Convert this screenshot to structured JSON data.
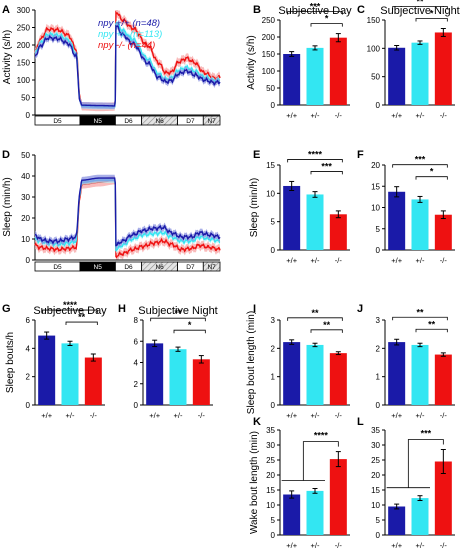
{
  "colors": {
    "wt": "#1a1aa8",
    "het": "#33e6f2",
    "hom": "#ee1111",
    "wt_band": "#8c94e0",
    "het_band": "#a8f2f8",
    "hom_band": "#f7a4a4"
  },
  "chart_data": [
    {
      "panel": "A",
      "type": "line",
      "ylabel": "Activity (s/h)",
      "ylim": [
        0,
        300
      ],
      "yticks": [
        "0",
        "50",
        "100",
        "150",
        "200",
        "250",
        "300"
      ],
      "legend": [
        {
          "name": "npy +/+ (n=48)",
          "color": "wt"
        },
        {
          "name": "npy +/- (n=113)",
          "color": "het"
        },
        {
          "name": "npy -/- (n=44)",
          "color": "hom"
        }
      ],
      "legend_position": "top-right",
      "day_night_bar": [
        "D5",
        "N5",
        "D6",
        "N6",
        "D7",
        "N7"
      ],
      "series": [
        {
          "name": "npy -/-",
          "color": "hom",
          "band": "hom_band",
          "err": 12,
          "knots": [
            [
              0,
              178
            ],
            [
              2,
              215
            ],
            [
              5,
              245
            ],
            [
              9,
              243
            ],
            [
              13,
              228
            ],
            [
              16,
              188
            ],
            [
              17.5,
              50
            ],
            [
              18.2,
              25
            ],
            [
              25,
              23
            ],
            [
              31.2,
              24
            ],
            [
              31.5,
              295
            ],
            [
              34,
              272
            ],
            [
              38,
              248
            ],
            [
              44,
              198
            ],
            [
              48,
              150
            ],
            [
              51,
              120
            ],
            [
              53,
              122
            ],
            [
              56,
              152
            ],
            [
              59,
              162
            ],
            [
              62,
              150
            ],
            [
              66,
              120
            ],
            [
              70,
              105
            ],
            [
              72,
              108
            ]
          ]
        },
        {
          "name": "npy +/-",
          "color": "het",
          "band": "het_band",
          "err": 7,
          "knots": [
            [
              0,
              175
            ],
            [
              2,
              205
            ],
            [
              5,
              230
            ],
            [
              9,
              228
            ],
            [
              13,
              214
            ],
            [
              16,
              176
            ],
            [
              17.5,
              45
            ],
            [
              18.2,
              25
            ],
            [
              25,
              23
            ],
            [
              31.2,
              23
            ],
            [
              31.5,
              265
            ],
            [
              34,
              242
            ],
            [
              38,
              216
            ],
            [
              44,
              160
            ],
            [
              48,
              118
            ],
            [
              51,
              102
            ],
            [
              53,
              106
            ],
            [
              56,
              128
            ],
            [
              59,
              136
            ],
            [
              62,
              126
            ],
            [
              66,
              108
            ],
            [
              70,
              98
            ],
            [
              72,
              100
            ]
          ]
        },
        {
          "name": "npy +/+",
          "color": "wt",
          "band": "wt_band",
          "err": 9,
          "knots": [
            [
              0,
              168
            ],
            [
              2,
              196
            ],
            [
              5,
              220
            ],
            [
              9,
              218
            ],
            [
              13,
              204
            ],
            [
              16,
              168
            ],
            [
              17.5,
              42
            ],
            [
              18.2,
              28
            ],
            [
              25,
              27
            ],
            [
              31.2,
              26
            ],
            [
              31.5,
              255
            ],
            [
              34,
              230
            ],
            [
              38,
              204
            ],
            [
              44,
              148
            ],
            [
              48,
              108
            ],
            [
              51,
              95
            ],
            [
              53,
              98
            ],
            [
              56,
              118
            ],
            [
              59,
              126
            ],
            [
              62,
              115
            ],
            [
              66,
              100
            ],
            [
              70,
              92
            ],
            [
              72,
              95
            ]
          ]
        }
      ]
    },
    {
      "panel": "B",
      "type": "bar",
      "title": "Subjective Day",
      "ylabel": "Activity (s/h)",
      "ylim": [
        0,
        250
      ],
      "yticks": [
        "0",
        "50",
        "100",
        "150",
        "200",
        "250"
      ],
      "categories": [
        "+/+",
        "+/-",
        "-/-"
      ],
      "values": [
        150,
        168,
        198
      ],
      "errors": [
        7,
        6,
        12
      ],
      "brackets": [
        {
          "from": 0,
          "to": 2,
          "label": "***"
        },
        {
          "from": 1,
          "to": 2,
          "label": "*"
        }
      ]
    },
    {
      "panel": "C",
      "type": "bar",
      "title": "Subjective Night",
      "ylabel": "",
      "ylim": [
        0,
        150
      ],
      "yticks": [
        "0",
        "50",
        "100",
        "150"
      ],
      "categories": [
        "+/+",
        "+/-",
        "-/-"
      ],
      "values": [
        101,
        110,
        128
      ],
      "errors": [
        4,
        3,
        7
      ],
      "brackets": [
        {
          "from": 0,
          "to": 2,
          "label": "**"
        },
        {
          "from": 1,
          "to": 2,
          "label": "*"
        }
      ]
    },
    {
      "panel": "D",
      "type": "line",
      "ylabel": "Sleep (min/h)",
      "ylim": [
        0,
        50
      ],
      "yticks": [
        "0",
        "10",
        "20",
        "30",
        "40",
        "50"
      ],
      "day_night_bar": [
        "D5",
        "N5",
        "D6",
        "N6",
        "D7",
        "N7"
      ],
      "series": [
        {
          "name": "npy -/-",
          "color": "hom",
          "band": "hom_band",
          "err": 2.0,
          "knots": [
            [
              0,
              7
            ],
            [
              2,
              6
            ],
            [
              5,
              5.5
            ],
            [
              9,
              5
            ],
            [
              13,
              5.5
            ],
            [
              16,
              6
            ],
            [
              17.5,
              30
            ],
            [
              18.2,
              36
            ],
            [
              25,
              37
            ],
            [
              31.2,
              38
            ],
            [
              31.5,
              2
            ],
            [
              34,
              3
            ],
            [
              38,
              5
            ],
            [
              42,
              6.5
            ],
            [
              46,
              8
            ],
            [
              50,
              9
            ],
            [
              53,
              7.5
            ],
            [
              57,
              5
            ],
            [
              61,
              5.5
            ],
            [
              64,
              7
            ],
            [
              68,
              6
            ],
            [
              72,
              5
            ]
          ]
        },
        {
          "name": "npy +/-",
          "color": "het",
          "band": "het_band",
          "err": 1.2,
          "knots": [
            [
              0,
              10
            ],
            [
              2,
              9
            ],
            [
              5,
              8
            ],
            [
              9,
              7.5
            ],
            [
              13,
              8
            ],
            [
              16,
              9
            ],
            [
              17.5,
              32
            ],
            [
              18.2,
              37
            ],
            [
              25,
              38
            ],
            [
              31.2,
              38
            ],
            [
              31.5,
              5
            ],
            [
              34,
              7
            ],
            [
              38,
              10
            ],
            [
              42,
              12
            ],
            [
              46,
              12.5
            ],
            [
              50,
              13
            ],
            [
              53,
              11
            ],
            [
              57,
              9
            ],
            [
              61,
              9
            ],
            [
              64,
              11
            ],
            [
              68,
              10
            ],
            [
              72,
              9
            ]
          ]
        },
        {
          "name": "npy +/+",
          "color": "wt",
          "band": "wt_band",
          "err": 1.6,
          "knots": [
            [
              0,
              12
            ],
            [
              2,
              10
            ],
            [
              5,
              9
            ],
            [
              9,
              9
            ],
            [
              13,
              10
            ],
            [
              16,
              11
            ],
            [
              17.5,
              33
            ],
            [
              18.2,
              38
            ],
            [
              25,
              39
            ],
            [
              31.2,
              39
            ],
            [
              31.5,
              7
            ],
            [
              34,
              9
            ],
            [
              38,
              12
            ],
            [
              42,
              14
            ],
            [
              46,
              15
            ],
            [
              50,
              15.5
            ],
            [
              53,
              13
            ],
            [
              57,
              11
            ],
            [
              61,
              11
            ],
            [
              64,
              13
            ],
            [
              68,
              12
            ],
            [
              72,
              11
            ]
          ]
        }
      ]
    },
    {
      "panel": "E",
      "type": "bar",
      "ylabel": "Sleep (min/h)",
      "ylim": [
        0,
        15
      ],
      "yticks": [
        "0",
        "5",
        "10",
        "15"
      ],
      "categories": [
        "+/+",
        "+/-",
        "-/-"
      ],
      "values": [
        11.3,
        9.8,
        6.3
      ],
      "errors": [
        0.8,
        0.5,
        0.6
      ],
      "brackets": [
        {
          "from": 0,
          "to": 2,
          "label": "****"
        },
        {
          "from": 1,
          "to": 2,
          "label": "***"
        }
      ]
    },
    {
      "panel": "F",
      "type": "bar",
      "ylabel": "",
      "ylim": [
        0,
        20
      ],
      "yticks": [
        "0",
        "5",
        "10",
        "15",
        "20"
      ],
      "categories": [
        "+/+",
        "+/-",
        "-/-"
      ],
      "values": [
        13.7,
        11.9,
        8.3
      ],
      "errors": [
        1.2,
        0.7,
        0.9
      ],
      "brackets": [
        {
          "from": 0,
          "to": 2,
          "label": "***"
        },
        {
          "from": 1,
          "to": 2,
          "label": "*"
        }
      ]
    },
    {
      "panel": "G",
      "type": "bar",
      "title": "Subjective Day",
      "ylabel": "Sleep bouts/h",
      "ylim": [
        0,
        6
      ],
      "yticks": [
        "0",
        "2",
        "4",
        "6"
      ],
      "categories": [
        "+/+",
        "+/-",
        "-/-"
      ],
      "values": [
        4.9,
        4.35,
        3.35
      ],
      "errors": [
        0.25,
        0.15,
        0.25
      ],
      "brackets": [
        {
          "from": 0,
          "to": 2,
          "label": "****"
        },
        {
          "from": 1,
          "to": 2,
          "label": "**"
        }
      ]
    },
    {
      "panel": "H",
      "type": "bar",
      "title": "Subjective Night",
      "ylabel": "",
      "ylim": [
        0,
        8
      ],
      "yticks": [
        "0",
        "2",
        "4",
        "6",
        "8"
      ],
      "categories": [
        "+/+",
        "+/-",
        "-/-"
      ],
      "values": [
        5.8,
        5.25,
        4.3
      ],
      "errors": [
        0.3,
        0.2,
        0.35
      ],
      "brackets": [
        {
          "from": 0,
          "to": 2,
          "label": "**"
        },
        {
          "from": 1,
          "to": 2,
          "label": "*"
        }
      ]
    },
    {
      "panel": "I",
      "type": "bar",
      "ylabel": "Sleep bout length (min)",
      "ylim": [
        0,
        3
      ],
      "yticks": [
        "0",
        "1",
        "2",
        "3"
      ],
      "categories": [
        "+/+",
        "+/-",
        "-/-"
      ],
      "values": [
        2.22,
        2.12,
        1.83
      ],
      "errors": [
        0.08,
        0.06,
        0.05
      ],
      "brackets": [
        {
          "from": 0,
          "to": 2,
          "label": "**"
        },
        {
          "from": 1,
          "to": 2,
          "label": "**"
        }
      ]
    },
    {
      "panel": "J",
      "type": "bar",
      "ylabel": "",
      "ylim": [
        0,
        3
      ],
      "yticks": [
        "0",
        "1",
        "2",
        "3"
      ],
      "categories": [
        "+/+",
        "+/-",
        "-/-"
      ],
      "values": [
        2.22,
        2.12,
        1.78
      ],
      "errors": [
        0.1,
        0.06,
        0.06
      ],
      "brackets": [
        {
          "from": 0,
          "to": 2,
          "label": "**"
        },
        {
          "from": 1,
          "to": 2,
          "label": "**"
        }
      ]
    },
    {
      "panel": "K",
      "type": "bar",
      "ylabel": "Wake bout length (min)",
      "ylim": [
        0,
        35
      ],
      "yticks": [
        "0",
        "5",
        "10",
        "15",
        "20",
        "25",
        "30",
        "35"
      ],
      "categories": [
        "+/+",
        "+/-",
        "-/-"
      ],
      "values": [
        13.5,
        14.7,
        25.3
      ],
      "errors": [
        1.2,
        0.8,
        2.5
      ],
      "brackets": [
        {
          "from": "pair01",
          "to": 2,
          "label": "****"
        }
      ]
    },
    {
      "panel": "L",
      "type": "bar",
      "ylabel": "",
      "ylim": [
        0,
        35
      ],
      "yticks": [
        "0",
        "5",
        "10",
        "15",
        "20",
        "25",
        "30",
        "35"
      ],
      "categories": [
        "+/+",
        "+/-",
        "-/-"
      ],
      "values": [
        9.5,
        12.3,
        24.5
      ],
      "errors": [
        0.8,
        0.8,
        4.0
      ],
      "brackets": [
        {
          "from": "pair01",
          "to": 2,
          "label": "***"
        }
      ]
    }
  ]
}
